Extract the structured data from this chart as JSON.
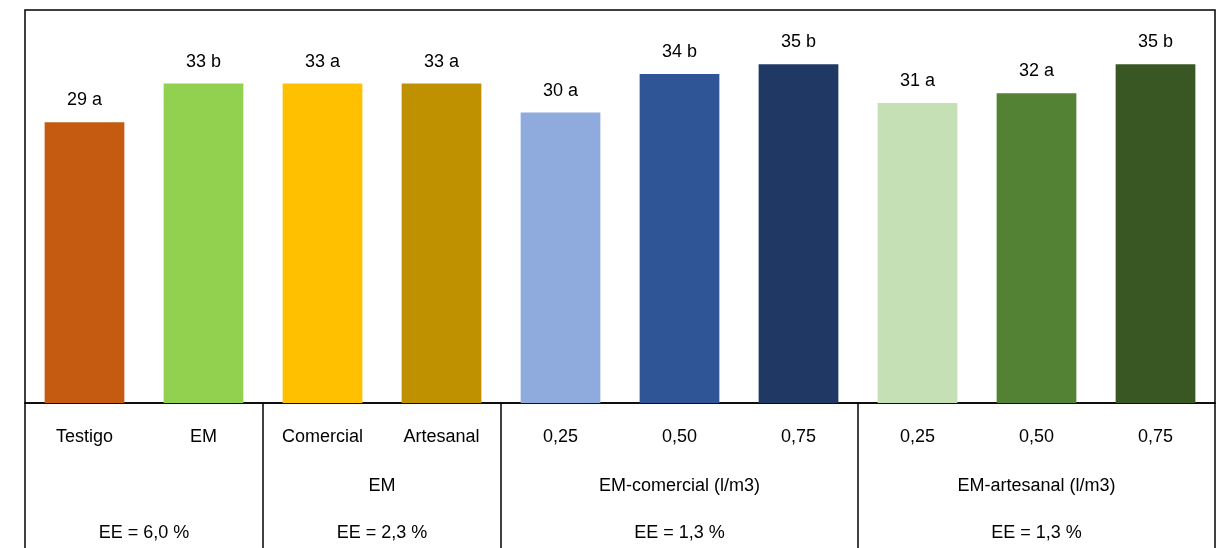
{
  "chart_data": {
    "type": "bar",
    "categories": [
      "Testigo",
      "EM",
      "Comercial",
      "Artesanal",
      "0,25",
      "0,50",
      "0,75",
      "0,25",
      "0,50",
      "0,75"
    ],
    "values": [
      29,
      33,
      33,
      33,
      30,
      34,
      35,
      31,
      32,
      35
    ],
    "colors": [
      "#c55a11",
      "#92d050",
      "#ffc000",
      "#bf9000",
      "#8faadc",
      "#2f5597",
      "#203864",
      "#c5e0b4",
      "#548235",
      "#385723"
    ],
    "value_labels": [
      "29 a",
      "33 b",
      "33 a",
      "33 a",
      "30 a",
      "34 b",
      "35 b",
      "31 a",
      "32 a",
      "35 b"
    ],
    "annotations": [
      "EM",
      "EM-comercial (l/m3)",
      "EM-artesanal (l/m3)",
      "EE = 6,0 %",
      "EE = 2,3 %",
      "EE = 1,3 %",
      "EE = 1,3 %"
    ]
  }
}
